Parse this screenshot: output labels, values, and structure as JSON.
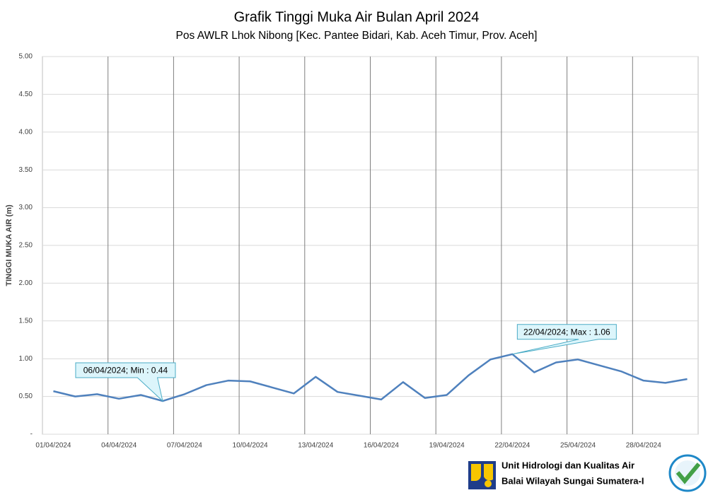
{
  "chart_data": {
    "type": "line",
    "title": "Grafik Tinggi Muka Air Bulan April 2024",
    "subtitle": "Pos AWLR Lhok Nibong [Kec. Pantee Bidari, Kab. Aceh Timur, Prov. Aceh]",
    "y_label": "TINGGI MUKA AIR (m)",
    "categories": [
      "01/04/2024",
      null,
      null,
      "04/04/2024",
      null,
      null,
      "07/04/2024",
      null,
      null,
      "10/04/2024",
      null,
      null,
      "13/04/2024",
      null,
      null,
      "16/04/2024",
      null,
      null,
      "19/04/2024",
      null,
      null,
      "22/04/2024",
      null,
      null,
      "25/04/2024",
      null,
      null,
      "28/04/2024",
      null,
      null
    ],
    "series": [
      {
        "name": "Tinggi Muka Air",
        "color": "#4f81bd",
        "values": [
          0.57,
          0.5,
          0.53,
          0.47,
          0.52,
          0.44,
          0.53,
          0.65,
          0.71,
          0.7,
          0.62,
          0.54,
          0.76,
          0.56,
          0.51,
          0.46,
          0.69,
          0.48,
          0.52,
          0.78,
          0.99,
          1.06,
          0.82,
          0.95,
          0.99,
          0.91,
          0.83,
          0.71,
          0.68,
          0.73
        ]
      }
    ],
    "ylim": [
      0,
      5
    ],
    "yticks": [
      {
        "value": 0,
        "label": "-"
      },
      {
        "value": 0.5,
        "label": "0.50"
      },
      {
        "value": 1,
        "label": "1.00"
      },
      {
        "value": 1.5,
        "label": "1.50"
      },
      {
        "value": 2,
        "label": "2.00"
      },
      {
        "value": 2.5,
        "label": "2.50"
      },
      {
        "value": 3,
        "label": "3.00"
      },
      {
        "value": 3.5,
        "label": "3.50"
      },
      {
        "value": 4,
        "label": "4.00"
      },
      {
        "value": 4.5,
        "label": "4.50"
      },
      {
        "value": 5,
        "label": "5.00"
      }
    ],
    "grid": true,
    "annotations": [
      "06/04/2024; Min : 0.44",
      "22/04/2024; Max : 1.06"
    ]
  },
  "footer": {
    "line1": "Unit Hidrologi dan Kualitas Air",
    "line2": "Balai Wilayah Sungai Sumatera-I"
  }
}
